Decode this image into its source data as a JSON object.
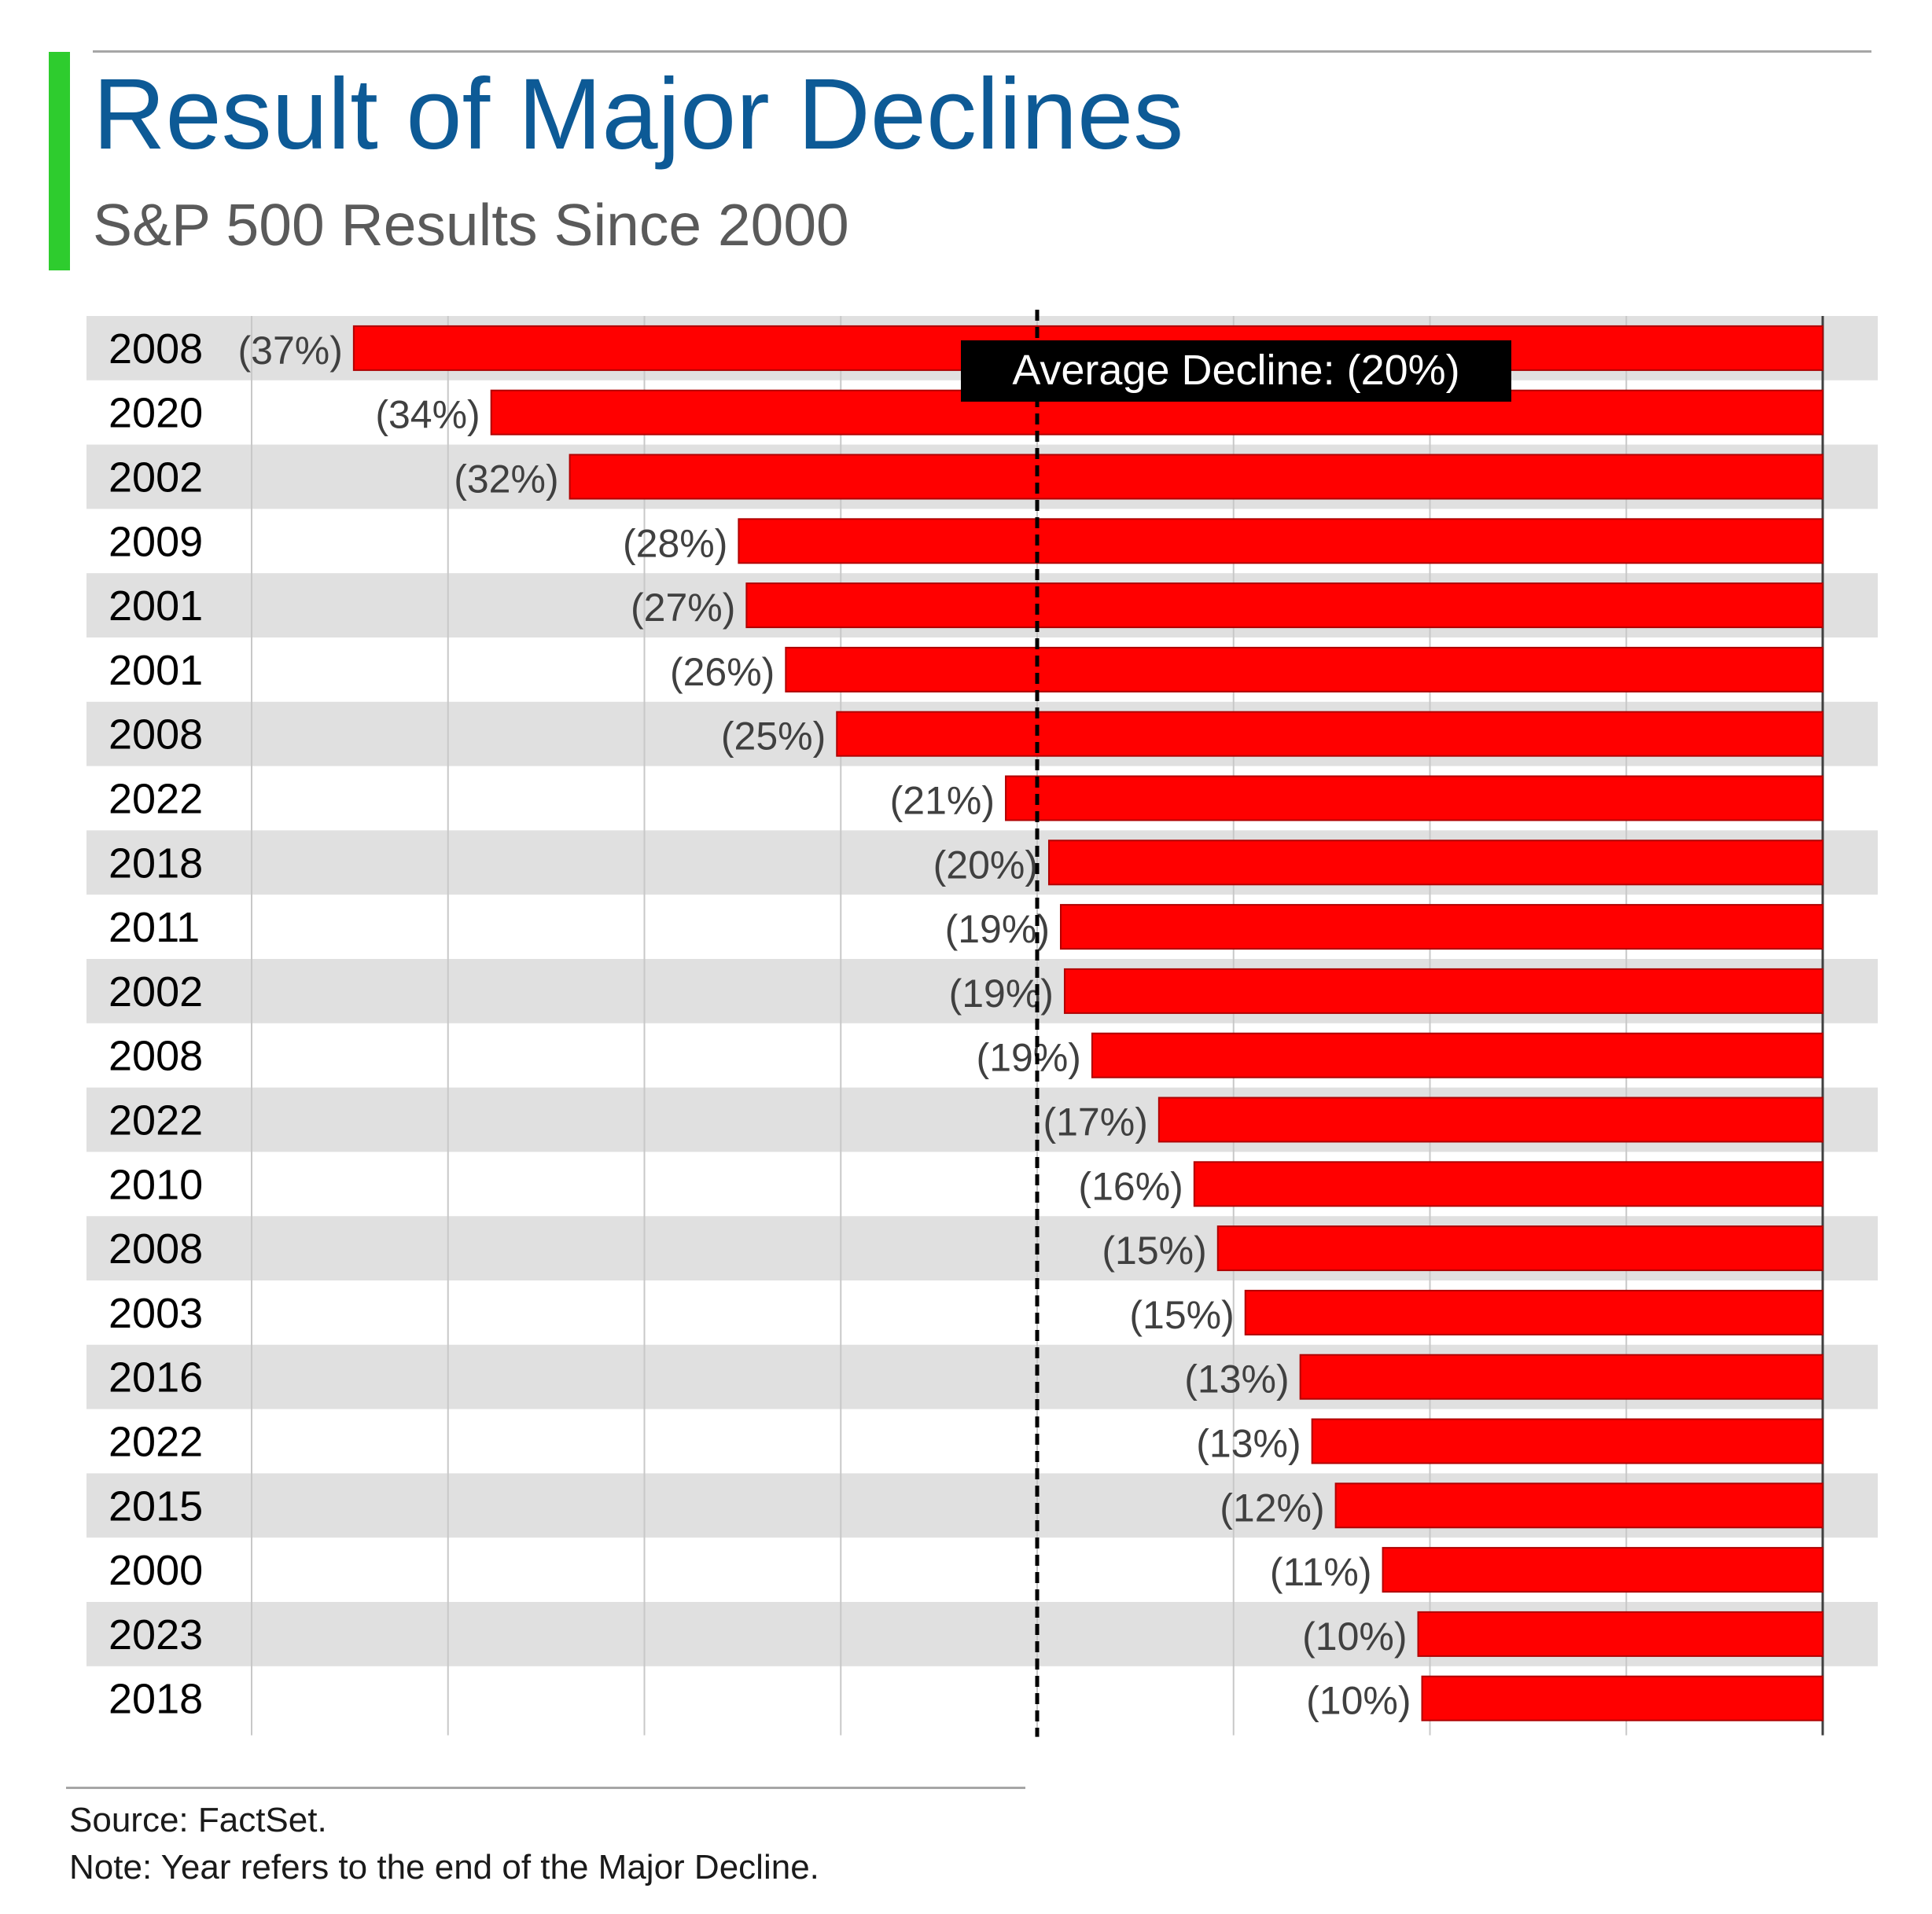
{
  "header": {
    "title": "Result of Major Declines",
    "subtitle": "S&P 500 Results Since 2000"
  },
  "chart_data": {
    "type": "bar",
    "orientation": "horizontal",
    "title": "Result of Major Declines",
    "subtitle": "S&P 500 Results Since 2000",
    "categories": [
      "2008",
      "2020",
      "2002",
      "2009",
      "2001",
      "2001",
      "2008",
      "2022",
      "2018",
      "2011",
      "2002",
      "2008",
      "2022",
      "2010",
      "2008",
      "2003",
      "2016",
      "2022",
      "2015",
      "2000",
      "2023",
      "2018"
    ],
    "values": [
      -37.4,
      -33.9,
      -31.9,
      -27.6,
      -27.4,
      -26.4,
      -25.1,
      -20.8,
      -19.7,
      -19.4,
      -19.3,
      -18.6,
      -16.9,
      -16.0,
      -15.4,
      -14.7,
      -13.3,
      -13.0,
      -12.4,
      -11.2,
      -10.3,
      -10.2
    ],
    "labels": [
      "(37%)",
      "(34%)",
      "(32%)",
      "(28%)",
      "(27%)",
      "(26%)",
      "(25%)",
      "(21%)",
      "(20%)",
      "(19%)",
      "(19%)",
      "(19%)",
      "(17%)",
      "(16%)",
      "(15%)",
      "(15%)",
      "(13%)",
      "(13%)",
      "(12%)",
      "(11%)",
      "(10%)",
      "(10%)"
    ],
    "xlim": [
      -40,
      0
    ],
    "average": -20,
    "average_label": "Average Decline: (20%)",
    "xlabel": "",
    "ylabel": "",
    "grid": true,
    "bar_color": "#ff0000",
    "row_band_color": "#e0e0e0",
    "legend": "none"
  },
  "footer": {
    "source": "Source: FactSet.",
    "note": "Note: Year refers to the end of the Major Decline."
  }
}
